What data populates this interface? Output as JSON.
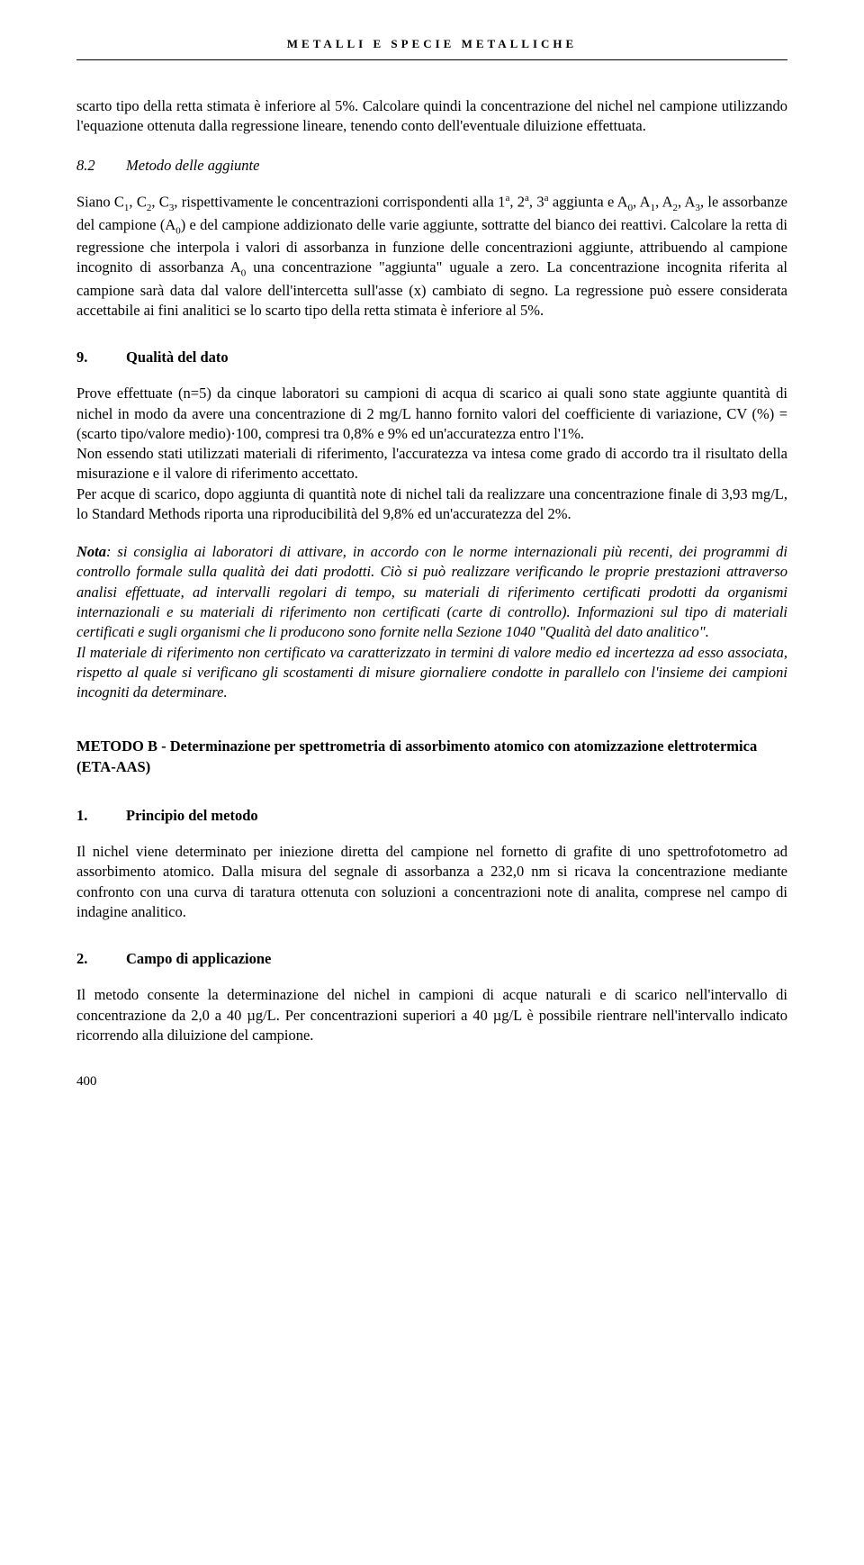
{
  "header": "METALLI E SPECIE METALLICHE",
  "p1": "scarto tipo della retta stimata è inferiore al 5%. Calcolare quindi la concentrazione del nichel nel campione utilizzando l'equazione ottenuta dalla regressione lineare, tenendo conto dell'eventuale diluizione effettuata.",
  "s82_num": "8.2",
  "s82_title": "Metodo delle aggiunte",
  "p2a": "Siano C",
  "p2b": ", C",
  "p2c": ", C",
  "p2d": ", rispettivamente le concentrazioni corrispondenti alla 1",
  "p2e": ", 2",
  "p2f": ", 3",
  "p2g": " aggiunta e A",
  "p2h": ", A",
  "p2i": ", A",
  "p2j": ", A",
  "p2k": ", le assorbanze del campione (A",
  "p2l": ") e del campione addizionato delle varie aggiunte, sottratte del bianco dei reattivi. Calcolare la retta di regressione che interpola i valori di assorbanza in funzione delle concentrazioni aggiunte, attribuendo al campione incognito di assorbanza A",
  "p2m": " una concentrazione \"aggiunta\" uguale a zero. La concentrazione incognita riferita al campione sarà data dal valore dell'intercetta sull'asse (x) cambiato di segno. La regressione può essere considerata accettabile ai fini analitici se lo scarto tipo della retta stimata è inferiore al 5%.",
  "s9_num": "9.",
  "s9_title": "Qualità del dato",
  "p3": "Prove effettuate (n=5) da cinque laboratori su campioni di acqua di scarico ai quali sono state aggiunte quantità di nichel in modo da avere una concentrazione di 2 mg/L hanno fornito valori del coefficiente di variazione, CV (%) = (scarto tipo/valore medio)·100, compresi tra 0,8% e 9% ed un'accuratezza entro l'1%.",
  "p4": "Non essendo stati utilizzati materiali di riferimento, l'accuratezza va intesa come grado di accordo tra il risultato della misurazione e il valore di riferimento accettato.",
  "p5": "Per acque di scarico, dopo aggiunta di quantità note di nichel tali da realizzare una concentrazione finale di 3,93 mg/L, lo Standard Methods riporta una riproducibilità del 9,8% ed un'accuratezza del 2%.",
  "nota_label": "Nota",
  "p6": ": si consiglia ai laboratori di attivare, in accordo con le norme internazionali più recenti, dei programmi di controllo formale sulla qualità dei dati prodotti. Ciò si può realizzare verificando le proprie prestazioni attraverso analisi effettuate, ad intervalli regolari di tempo, su materiali di riferimento certificati prodotti da organismi internazionali e su materiali di riferimento non certificati (carte di controllo). Informazioni sul tipo di materiali certificati e sugli organismi che li producono sono fornite nella Sezione 1040 \"Qualità del dato analitico\".",
  "p7": "Il materiale di riferimento non certificato va caratterizzato in termini di valore medio ed incertezza ad esso associata, rispetto al quale si verificano gli scostamenti di misure giornaliere condotte in parallelo con l'insieme dei campioni incogniti da determinare.",
  "method_title": "METODO B - Determinazione per spettrometria di assorbimento atomico con atomizzazione elettrotermica (ETA-AAS)",
  "s1_num": "1.",
  "s1_title": "Principio del metodo",
  "p8": "Il nichel viene determinato per iniezione diretta del campione nel fornetto di grafite di uno spettrofotometro ad assorbimento atomico. Dalla misura del segnale di assorbanza a 232,0 nm si ricava la concentrazione mediante confronto con una curva di taratura ottenuta con soluzioni a concentrazioni note di analita, comprese nel campo di indagine analitico.",
  "s2_num": "2.",
  "s2_title": "Campo di applicazione",
  "p9": "Il metodo consente la determinazione del nichel in campioni di acque naturali e di scarico nell'intervallo di concentrazione da 2,0 a 40 µg/L. Per concentrazioni superiori a 40 µg/L è possibile rientrare nell'intervallo indicato ricorrendo alla diluizione del campione.",
  "page_num": "400"
}
